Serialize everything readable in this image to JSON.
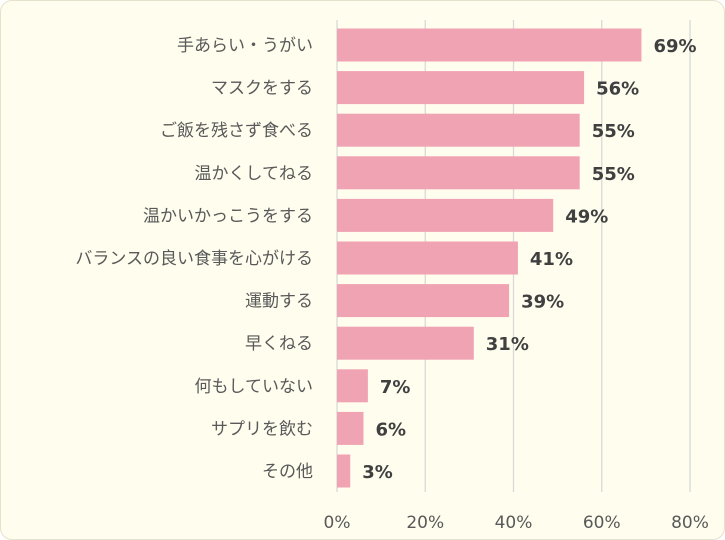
{
  "chart_data": {
    "type": "bar",
    "orientation": "horizontal",
    "title": "",
    "xlabel": "",
    "ylabel": "",
    "categories": [
      "手あらい・うがい",
      "マスクをする",
      "ご飯を残さず食べる",
      "温かくしてねる",
      "温かいかっこうをする",
      "バランスの良い食事を心がける",
      "運動する",
      "早くねる",
      "何もしていない",
      "サプリを飲む",
      "その他"
    ],
    "values": [
      69,
      56,
      55,
      55,
      49,
      41,
      39,
      31,
      7,
      6,
      3
    ],
    "value_labels": [
      "69%",
      "56%",
      "55%",
      "55%",
      "49%",
      "41%",
      "39%",
      "31%",
      "7%",
      "6%",
      "3%"
    ],
    "xlim": [
      0,
      80
    ],
    "x_ticks": [
      0,
      20,
      40,
      60,
      80
    ],
    "x_tick_labels": [
      "0%",
      "20%",
      "40%",
      "60%",
      "80%"
    ],
    "grid": "vertical",
    "legend": "none",
    "bar_color": "#f0a3b3",
    "background_color": "#fffdee"
  }
}
